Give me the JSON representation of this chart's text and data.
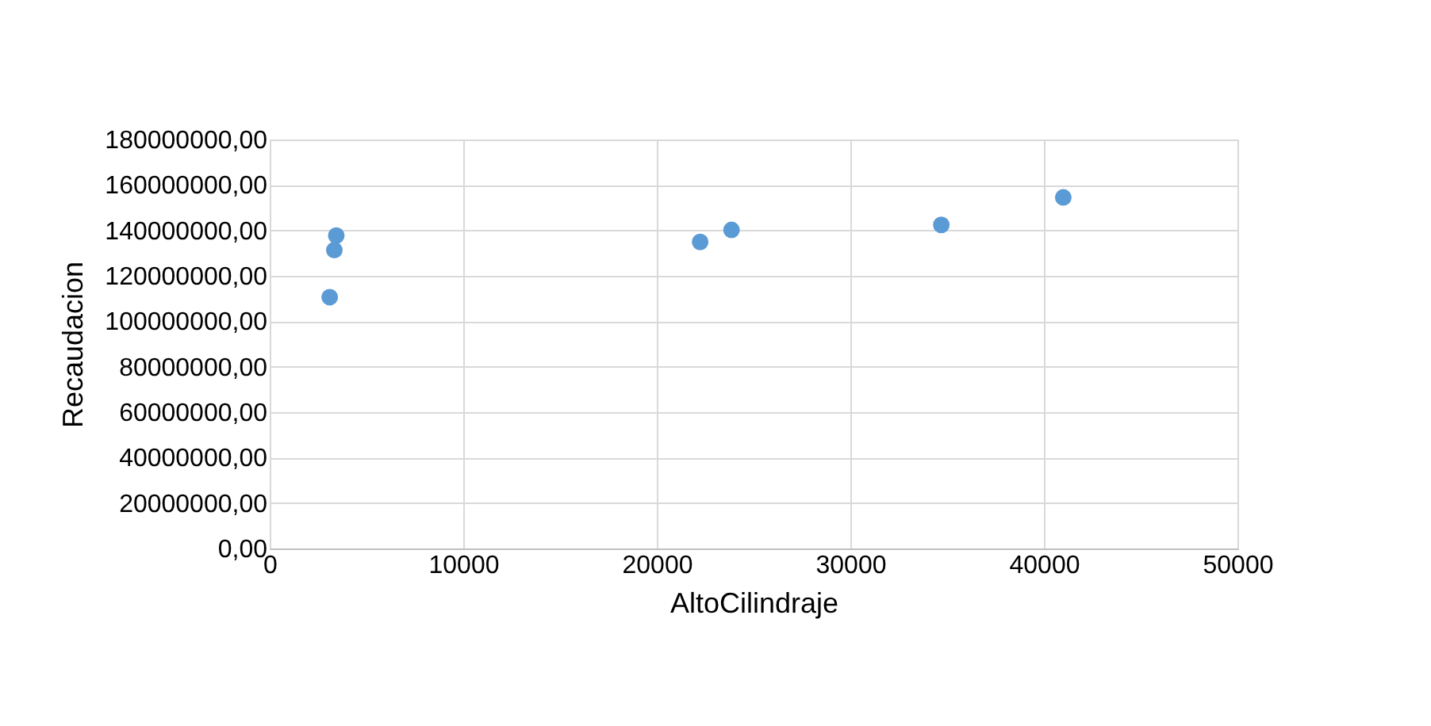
{
  "chart_data": {
    "type": "scatter",
    "xlabel": "AltoCilindraje",
    "ylabel": "Recaudacion",
    "x": [
      3100,
      3340,
      3440,
      22240,
      23860,
      34700,
      41000
    ],
    "series": [
      {
        "color": "#5b9bd5",
        "values": [
          110600000,
          131300000,
          137700000,
          134900000,
          140200000,
          142400000,
          154500000
        ]
      }
    ],
    "xlim": [
      0,
      50000
    ],
    "xticks": [
      0,
      10000,
      20000,
      30000,
      40000,
      50000
    ],
    "ylim": [
      0,
      180000000
    ],
    "yticks": [
      {
        "value": 0,
        "label": "0,00"
      },
      {
        "value": 20000000,
        "label": "20000000,00"
      },
      {
        "value": 40000000,
        "label": "40000000,00"
      },
      {
        "value": 60000000,
        "label": "60000000,00"
      },
      {
        "value": 80000000,
        "label": "80000000,00"
      },
      {
        "value": 100000000,
        "label": "100000000,00"
      },
      {
        "value": 120000000,
        "label": "120000000,00"
      },
      {
        "value": 140000000,
        "label": "140000000,00"
      },
      {
        "value": 160000000,
        "label": "160000000,00"
      },
      {
        "value": 180000000,
        "label": "180000000,00"
      }
    ],
    "grid": true,
    "marker": "circle",
    "legend": false
  }
}
